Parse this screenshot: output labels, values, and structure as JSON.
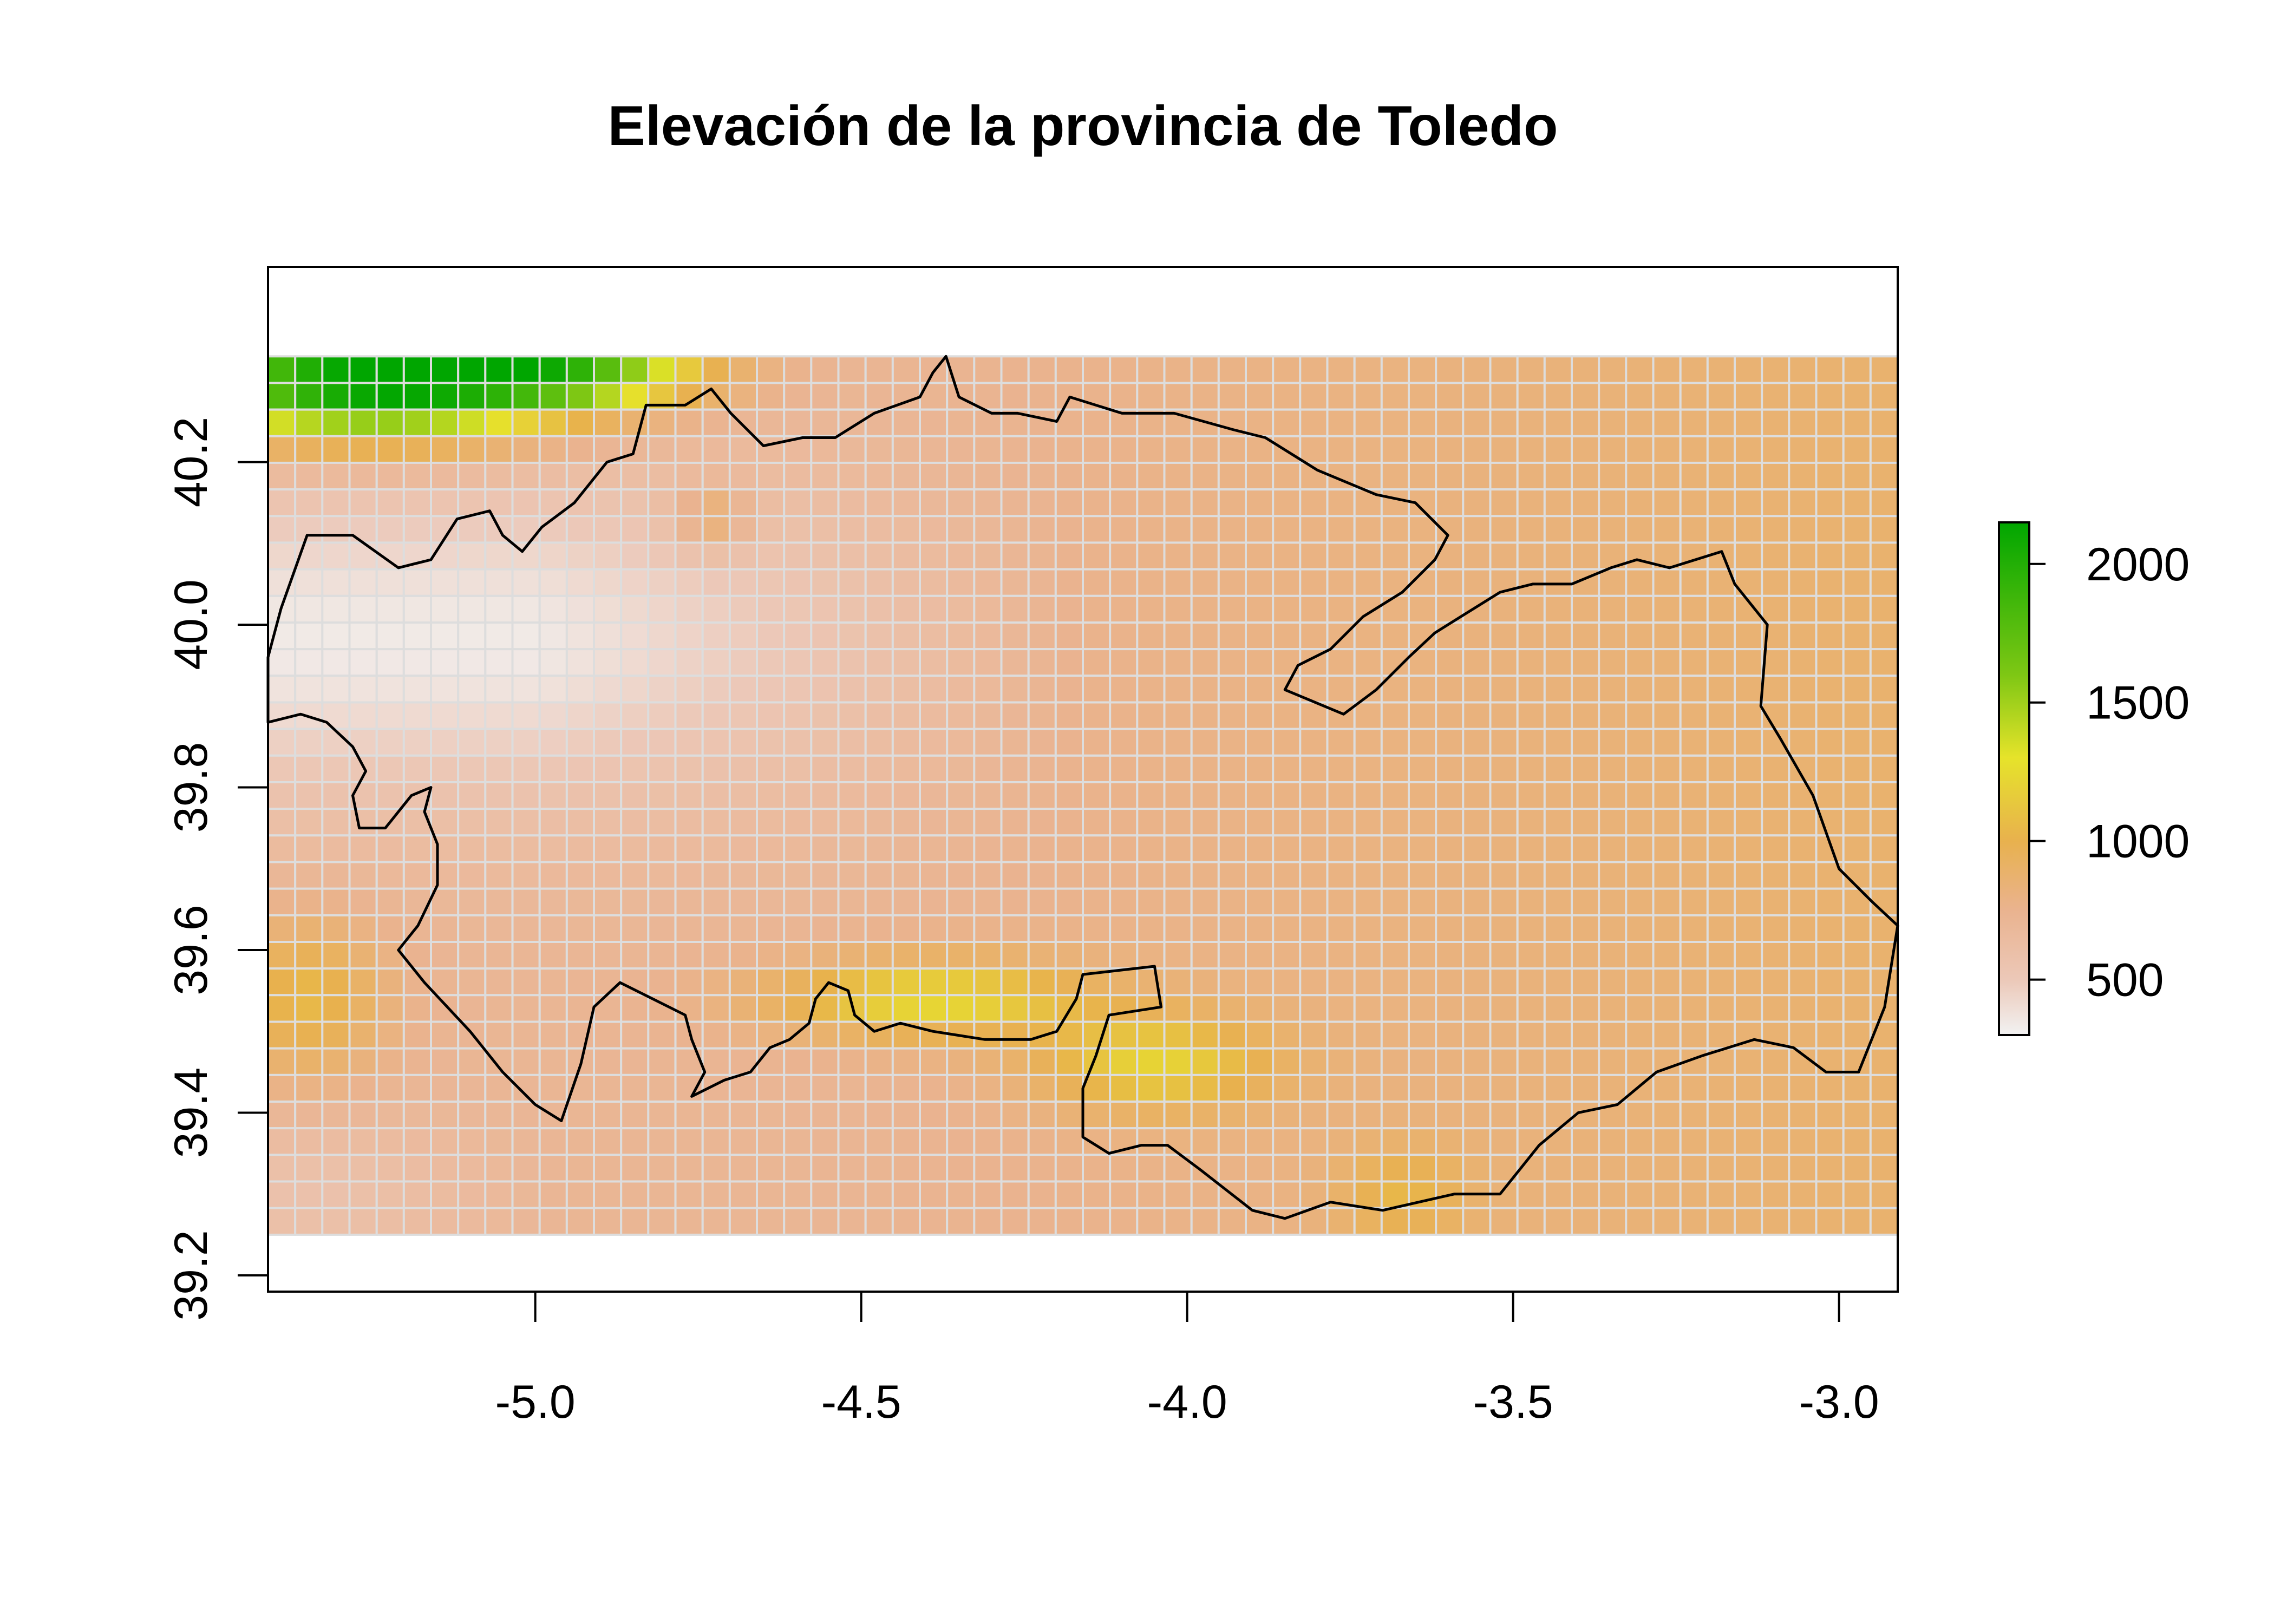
{
  "chart_data": {
    "type": "heatmap",
    "title": "Elevación de la provincia de Toledo",
    "xlabel": "",
    "ylabel": "",
    "xlim": [
      -5.41,
      -2.91
    ],
    "ylim": [
      39.18,
      40.44
    ],
    "raster_extent": {
      "x": [
        -5.41,
        -2.91
      ],
      "y": [
        39.25,
        40.33
      ]
    },
    "grid": {
      "cols": 60,
      "rows": 33
    },
    "x_ticks": [
      {
        "value": -5.0,
        "label": "-5.0"
      },
      {
        "value": -4.5,
        "label": "-4.5"
      },
      {
        "value": -4.0,
        "label": "-4.0"
      },
      {
        "value": -3.5,
        "label": "-3.5"
      },
      {
        "value": -3.0,
        "label": "-3.0"
      }
    ],
    "y_ticks": [
      {
        "value": 39.2,
        "label": "39.2"
      },
      {
        "value": 39.4,
        "label": "39.4"
      },
      {
        "value": 39.6,
        "label": "39.6"
      },
      {
        "value": 39.8,
        "label": "39.8"
      },
      {
        "value": 40.0,
        "label": "40.0"
      },
      {
        "value": 40.2,
        "label": "40.2"
      }
    ],
    "legend": {
      "placement": "right",
      "range": [
        300,
        2150
      ],
      "ticks": [
        {
          "value": 500,
          "label": "500"
        },
        {
          "value": 1000,
          "label": "1000"
        },
        {
          "value": 1500,
          "label": "1500"
        },
        {
          "value": 2000,
          "label": "2000"
        }
      ]
    },
    "color_scale": [
      {
        "value": 300,
        "color": "#f2f2f2"
      },
      {
        "value": 500,
        "color": "#ecc8b8"
      },
      {
        "value": 750,
        "color": "#eab38f"
      },
      {
        "value": 1000,
        "color": "#e8b14e"
      },
      {
        "value": 1300,
        "color": "#e6e32a"
      },
      {
        "value": 1600,
        "color": "#7ec714"
      },
      {
        "value": 2150,
        "color": "#00a600"
      }
    ],
    "cell_border_color": "#dddddd",
    "province_outline": [
      [
        -5.41,
        39.88
      ],
      [
        -5.36,
        39.89
      ],
      [
        -5.32,
        39.88
      ],
      [
        -5.28,
        39.85
      ],
      [
        -5.26,
        39.82
      ],
      [
        -5.28,
        39.79
      ],
      [
        -5.27,
        39.75
      ],
      [
        -5.23,
        39.75
      ],
      [
        -5.19,
        39.79
      ],
      [
        -5.16,
        39.8
      ],
      [
        -5.17,
        39.77
      ],
      [
        -5.15,
        39.73
      ],
      [
        -5.15,
        39.68
      ],
      [
        -5.18,
        39.63
      ],
      [
        -5.21,
        39.6
      ],
      [
        -5.17,
        39.56
      ],
      [
        -5.1,
        39.5
      ],
      [
        -5.05,
        39.45
      ],
      [
        -5.0,
        39.41
      ],
      [
        -4.96,
        39.39
      ],
      [
        -4.93,
        39.46
      ],
      [
        -4.91,
        39.53
      ],
      [
        -4.87,
        39.56
      ],
      [
        -4.82,
        39.54
      ],
      [
        -4.77,
        39.52
      ],
      [
        -4.76,
        39.49
      ],
      [
        -4.74,
        39.45
      ],
      [
        -4.76,
        39.42
      ],
      [
        -4.71,
        39.44
      ],
      [
        -4.67,
        39.45
      ],
      [
        -4.64,
        39.48
      ],
      [
        -4.61,
        39.49
      ],
      [
        -4.58,
        39.51
      ],
      [
        -4.57,
        39.54
      ],
      [
        -4.55,
        39.56
      ],
      [
        -4.52,
        39.55
      ],
      [
        -4.51,
        39.52
      ],
      [
        -4.48,
        39.5
      ],
      [
        -4.44,
        39.51
      ],
      [
        -4.39,
        39.5
      ],
      [
        -4.31,
        39.49
      ],
      [
        -4.24,
        39.49
      ],
      [
        -4.2,
        39.5
      ],
      [
        -4.17,
        39.54
      ],
      [
        -4.16,
        39.57
      ],
      [
        -4.05,
        39.58
      ],
      [
        -4.04,
        39.53
      ],
      [
        -4.12,
        39.52
      ],
      [
        -4.14,
        39.47
      ],
      [
        -4.16,
        39.43
      ],
      [
        -4.16,
        39.37
      ],
      [
        -4.12,
        39.35
      ],
      [
        -4.07,
        39.36
      ],
      [
        -4.03,
        39.36
      ],
      [
        -3.98,
        39.33
      ],
      [
        -3.9,
        39.28
      ],
      [
        -3.85,
        39.27
      ],
      [
        -3.78,
        39.29
      ],
      [
        -3.7,
        39.28
      ],
      [
        -3.59,
        39.3
      ],
      [
        -3.52,
        39.3
      ],
      [
        -3.46,
        39.36
      ],
      [
        -3.4,
        39.4
      ],
      [
        -3.34,
        39.41
      ],
      [
        -3.28,
        39.45
      ],
      [
        -3.21,
        39.47
      ],
      [
        -3.13,
        39.49
      ],
      [
        -3.07,
        39.48
      ],
      [
        -3.02,
        39.45
      ],
      [
        -2.97,
        39.45
      ],
      [
        -2.93,
        39.53
      ],
      [
        -2.91,
        39.63
      ],
      [
        -2.95,
        39.66
      ],
      [
        -3.0,
        39.7
      ],
      [
        -3.04,
        39.79
      ],
      [
        -3.09,
        39.86
      ],
      [
        -3.12,
        39.9
      ],
      [
        -3.11,
        40.0
      ],
      [
        -3.16,
        40.05
      ],
      [
        -3.18,
        40.09
      ],
      [
        -3.26,
        40.07
      ],
      [
        -3.31,
        40.08
      ],
      [
        -3.35,
        40.07
      ],
      [
        -3.41,
        40.05
      ],
      [
        -3.47,
        40.05
      ],
      [
        -3.52,
        40.04
      ],
      [
        -3.58,
        40.01
      ],
      [
        -3.62,
        39.99
      ],
      [
        -3.66,
        39.96
      ],
      [
        -3.71,
        39.92
      ],
      [
        -3.76,
        39.89
      ],
      [
        -3.79,
        39.9
      ],
      [
        -3.85,
        39.92
      ],
      [
        -3.83,
        39.95
      ],
      [
        -3.78,
        39.97
      ],
      [
        -3.73,
        40.01
      ],
      [
        -3.67,
        40.04
      ],
      [
        -3.62,
        40.08
      ],
      [
        -3.6,
        40.11
      ],
      [
        -3.65,
        40.15
      ],
      [
        -3.71,
        40.16
      ],
      [
        -3.8,
        40.19
      ],
      [
        -3.88,
        40.23
      ],
      [
        -3.93,
        40.24
      ],
      [
        -4.02,
        40.26
      ],
      [
        -4.1,
        40.26
      ],
      [
        -4.18,
        40.28
      ],
      [
        -4.2,
        40.25
      ],
      [
        -4.26,
        40.26
      ],
      [
        -4.3,
        40.26
      ],
      [
        -4.35,
        40.28
      ],
      [
        -4.37,
        40.33
      ],
      [
        -4.39,
        40.31
      ],
      [
        -4.41,
        40.28
      ],
      [
        -4.48,
        40.26
      ],
      [
        -4.54,
        40.23
      ],
      [
        -4.59,
        40.23
      ],
      [
        -4.65,
        40.22
      ],
      [
        -4.7,
        40.26
      ],
      [
        -4.73,
        40.29
      ],
      [
        -4.77,
        40.27
      ],
      [
        -4.83,
        40.27
      ],
      [
        -4.85,
        40.21
      ],
      [
        -4.89,
        40.2
      ],
      [
        -4.94,
        40.15
      ],
      [
        -4.99,
        40.12
      ],
      [
        -5.02,
        40.09
      ],
      [
        -5.05,
        40.11
      ],
      [
        -5.07,
        40.14
      ],
      [
        -5.12,
        40.13
      ],
      [
        -5.16,
        40.08
      ],
      [
        -5.21,
        40.07
      ],
      [
        -5.28,
        40.11
      ],
      [
        -5.35,
        40.11
      ],
      [
        -5.39,
        40.02
      ],
      [
        -5.41,
        39.96
      ],
      [
        -5.41,
        39.88
      ]
    ]
  }
}
